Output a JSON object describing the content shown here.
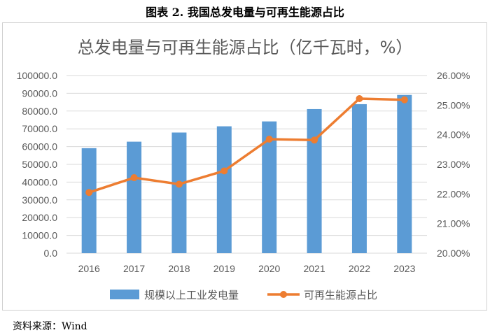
{
  "figure_title": "图表 2.  我国总发电量与可再生能源占比",
  "source_note": "资料来源：Wind",
  "colors": {
    "bar": "#5B9BD5",
    "line": "#ED7D31",
    "grid": "#d9d9d9",
    "text": "#595959"
  },
  "chart_data": {
    "type": "bar+line",
    "title": "总发电量与可再生能源占比（亿千瓦时，%）",
    "categories": [
      "2016",
      "2017",
      "2018",
      "2019",
      "2020",
      "2021",
      "2022",
      "2023"
    ],
    "series": [
      {
        "name": "规模以上工业发电量",
        "type": "bar",
        "axis": "left",
        "values": [
          59111,
          62758,
          67914,
          71422,
          74170,
          81122,
          83886,
          89091
        ]
      },
      {
        "name": "可再生能源占比",
        "type": "line",
        "axis": "right",
        "values": [
          22.05,
          22.55,
          22.33,
          22.78,
          23.85,
          23.82,
          25.22,
          25.18
        ]
      }
    ],
    "y_left": {
      "min": 0,
      "max": 100000,
      "step": 10000,
      "tick_labels": [
        "0.0",
        "10000.0",
        "20000.0",
        "30000.0",
        "40000.0",
        "50000.0",
        "60000.0",
        "70000.0",
        "80000.0",
        "90000.0",
        "100000.0"
      ]
    },
    "y_right": {
      "min": 20,
      "max": 26,
      "step": 1,
      "tick_labels": [
        "20.00%",
        "21.00%",
        "22.00%",
        "23.00%",
        "24.00%",
        "25.00%",
        "26.00%"
      ]
    },
    "legend_position": "bottom",
    "grid": true
  }
}
